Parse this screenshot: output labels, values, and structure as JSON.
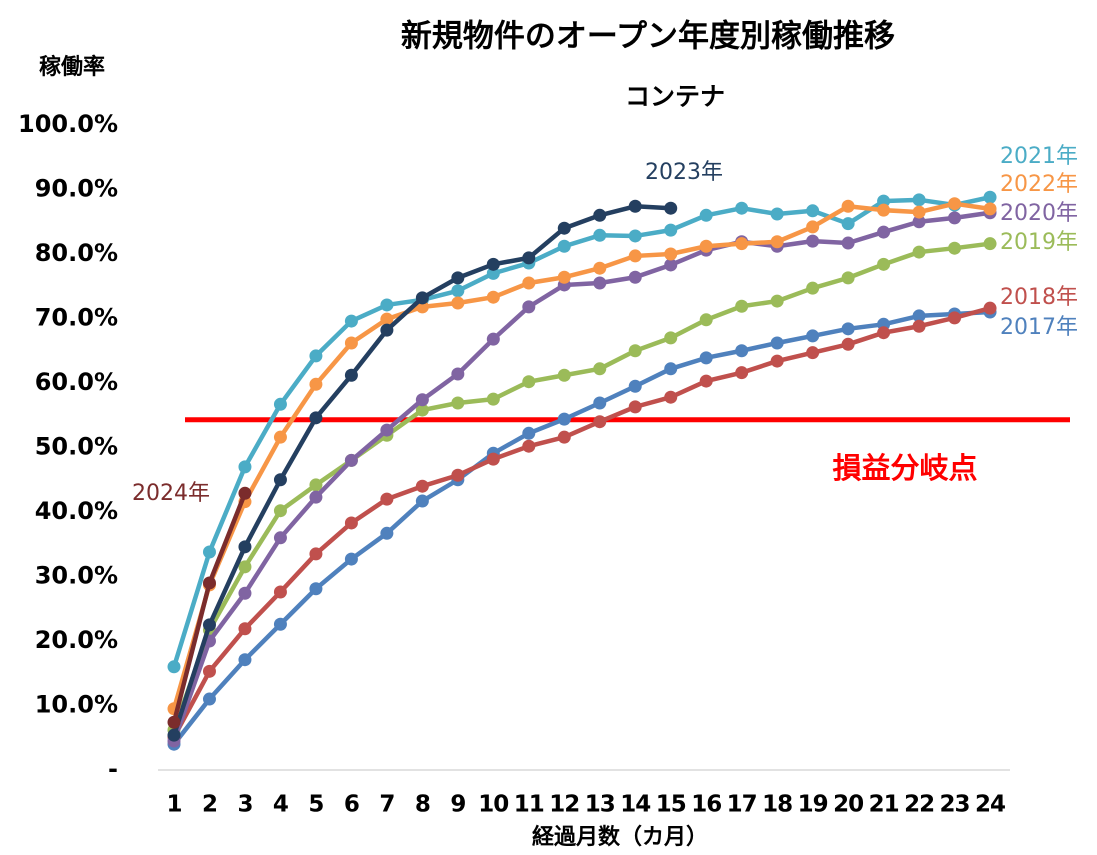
{
  "chart_data": {
    "type": "line",
    "title": "新規物件のオープン年度別稼働推移",
    "subtitle": "コンテナ",
    "y_label": "稼働率",
    "x_label": "経過月数（カ月）",
    "categories": [
      "1",
      "2",
      "3",
      "4",
      "5",
      "6",
      "7",
      "8",
      "9",
      "10",
      "11",
      "12",
      "13",
      "14",
      "15",
      "16",
      "17",
      "18",
      "19",
      "20",
      "21",
      "22",
      "23",
      "24"
    ],
    "ylim": [
      0,
      100
    ],
    "yticks": [
      {
        "value": 0,
        "label": "-"
      },
      {
        "value": 10,
        "label": "10.0%"
      },
      {
        "value": 20,
        "label": "20.0%"
      },
      {
        "value": 30,
        "label": "30.0%"
      },
      {
        "value": 40,
        "label": "40.0%"
      },
      {
        "value": 50,
        "label": "50.0%"
      },
      {
        "value": 60,
        "label": "60.0%"
      },
      {
        "value": 70,
        "label": "70.0%"
      },
      {
        "value": 80,
        "label": "80.0%"
      },
      {
        "value": 90,
        "label": "90.0%"
      },
      {
        "value": 100,
        "label": "100.0%"
      }
    ],
    "break_even": {
      "label": "損益分岐点",
      "value": 54.3,
      "color": "#ff0000"
    },
    "series": [
      {
        "name": "2017年",
        "color": "#4f81bd",
        "values": [
          4,
          11,
          17.1,
          22.6,
          28.1,
          32.7,
          36.7,
          41.7,
          45,
          49.1,
          52.2,
          54.4,
          56.9,
          59.5,
          62.2,
          63.9,
          65,
          66.2,
          67.3,
          68.4,
          69.1,
          70.4,
          70.7,
          71
        ]
      },
      {
        "name": "2018年",
        "color": "#c0504d",
        "values": [
          5.1,
          15.3,
          21.9,
          27.6,
          33.5,
          38.3,
          42,
          44,
          45.7,
          48.2,
          50.2,
          51.6,
          54,
          56.3,
          57.8,
          60.3,
          61.6,
          63.4,
          64.7,
          66,
          67.8,
          68.8,
          70.1,
          71.6
        ]
      },
      {
        "name": "2019年",
        "color": "#9bbb59",
        "values": [
          6.2,
          21.7,
          31.5,
          40.2,
          44.2,
          48,
          51.9,
          55.8,
          56.9,
          57.5,
          60.2,
          61.2,
          62.2,
          65,
          67,
          69.8,
          71.9,
          72.7,
          74.7,
          76.3,
          78.4,
          80.3,
          80.9,
          81.6
        ]
      },
      {
        "name": "2020年",
        "color": "#8064a2",
        "values": [
          4.5,
          20,
          27.4,
          36,
          42.3,
          48,
          52.7,
          57.4,
          61.4,
          66.8,
          71.8,
          75.2,
          75.5,
          76.4,
          78.3,
          80.6,
          81.9,
          81.2,
          82,
          81.7,
          83.4,
          85,
          85.6,
          86.4
        ]
      },
      {
        "name": "2021年",
        "color": "#4bacc6",
        "values": [
          16,
          33.8,
          47,
          56.7,
          64.2,
          69.6,
          72.1,
          72.9,
          74.3,
          77,
          78.6,
          81.2,
          82.9,
          82.8,
          83.7,
          86,
          87.1,
          86.2,
          86.7,
          84.7,
          88.2,
          88.4,
          87.6,
          88.8
        ]
      },
      {
        "name": "2022年",
        "color": "#f79646",
        "values": [
          9.5,
          28.7,
          41.6,
          51.6,
          59.8,
          66.2,
          69.9,
          71.8,
          72.4,
          73.3,
          75.5,
          76.4,
          77.8,
          79.7,
          80,
          81.2,
          81.6,
          81.9,
          84.2,
          87.4,
          86.8,
          86.5,
          87.8,
          87
        ]
      },
      {
        "name": "2023年",
        "color": "#243f60",
        "values": [
          5.4,
          22.5,
          34.6,
          45,
          54.6,
          61.2,
          68.2,
          73.2,
          76.3,
          78.4,
          79.4,
          84,
          86,
          87.4,
          87.1,
          null,
          null,
          null,
          null,
          null,
          null,
          null,
          null,
          null
        ]
      },
      {
        "name": "2024年",
        "color": "#7b2c2c",
        "values": [
          7.4,
          29,
          42.9,
          null,
          null,
          null,
          null,
          null,
          null,
          null,
          null,
          null,
          null,
          null,
          null,
          null,
          null,
          null,
          null,
          null,
          null,
          null,
          null,
          null
        ]
      }
    ]
  }
}
